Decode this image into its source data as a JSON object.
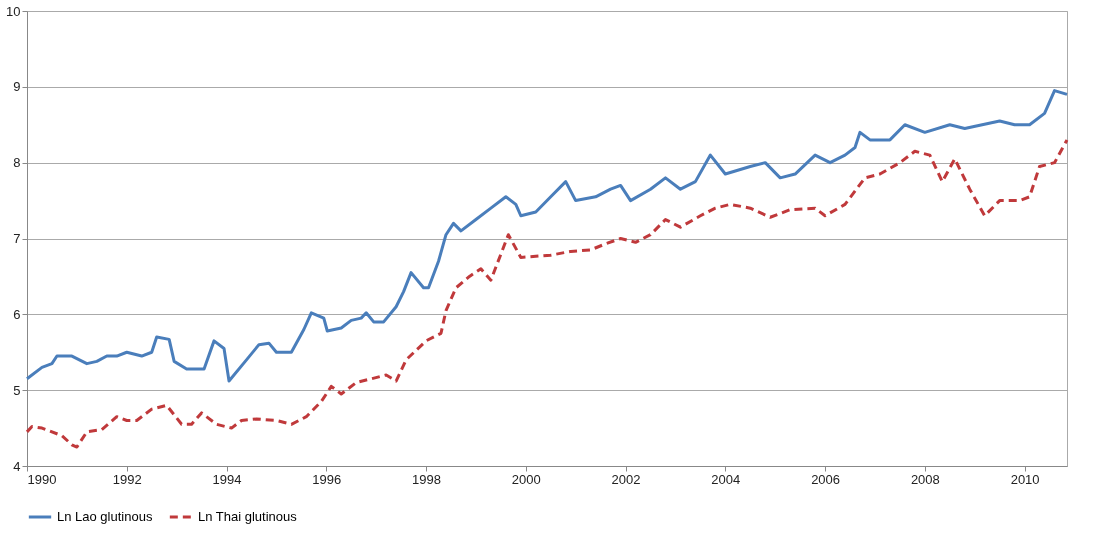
{
  "chart_data": {
    "type": "line",
    "xlim": [
      1990,
      2010.85
    ],
    "xticks": [
      1990,
      1992,
      1994,
      1996,
      1998,
      2000,
      2002,
      2004,
      2006,
      2008,
      2010
    ],
    "ylim": [
      4,
      10
    ],
    "yticks": [
      4,
      5,
      6,
      7,
      8,
      9,
      10
    ],
    "grid": "y",
    "legend": "bottom",
    "marker": "none",
    "series": [
      {
        "name": "Ln Lao glutinous",
        "color": "#4a7ebb",
        "line_style": "solid",
        "x": [
          1990.0,
          1990.3,
          1990.5,
          1990.6,
          1990.9,
          1991.2,
          1991.4,
          1991.6,
          1991.8,
          1992.0,
          1992.3,
          1992.5,
          1992.6,
          1992.85,
          1992.95,
          1993.2,
          1993.55,
          1993.75,
          1993.95,
          1994.05,
          1994.4,
          1994.65,
          1994.85,
          1995.0,
          1995.3,
          1995.55,
          1995.7,
          1995.95,
          1996.02,
          1996.3,
          1996.5,
          1996.7,
          1996.8,
          1996.95,
          1997.15,
          1997.4,
          1997.55,
          1997.7,
          1997.95,
          1998.05,
          1998.25,
          1998.4,
          1998.55,
          1998.7,
          1999.0,
          1999.3,
          1999.6,
          1999.8,
          1999.9,
          2000.2,
          2000.5,
          2000.8,
          2001.0,
          2001.4,
          2001.7,
          2001.9,
          2002.1,
          2002.5,
          2002.8,
          2003.1,
          2003.4,
          2003.7,
          2004.0,
          2004.5,
          2004.8,
          2005.1,
          2005.4,
          2005.8,
          2006.1,
          2006.4,
          2006.6,
          2006.7,
          2006.9,
          2007.3,
          2007.6,
          2008.0,
          2008.5,
          2008.8,
          2009.5,
          2009.8,
          2010.1,
          2010.4,
          2010.6,
          2010.85
        ],
        "values": [
          5.15,
          5.3,
          5.35,
          5.45,
          5.45,
          5.35,
          5.38,
          5.45,
          5.45,
          5.5,
          5.45,
          5.5,
          5.7,
          5.67,
          5.38,
          5.28,
          5.28,
          5.65,
          5.55,
          5.12,
          5.4,
          5.6,
          5.62,
          5.5,
          5.5,
          5.8,
          6.02,
          5.95,
          5.78,
          5.82,
          5.92,
          5.95,
          6.02,
          5.9,
          5.9,
          6.1,
          6.3,
          6.55,
          6.35,
          6.35,
          6.7,
          7.05,
          7.2,
          7.1,
          7.25,
          7.4,
          7.55,
          7.45,
          7.3,
          7.35,
          7.55,
          7.75,
          7.5,
          7.55,
          7.65,
          7.7,
          7.5,
          7.65,
          7.8,
          7.65,
          7.75,
          8.1,
          7.85,
          7.95,
          8.0,
          7.8,
          7.85,
          8.1,
          8.0,
          8.1,
          8.2,
          8.4,
          8.3,
          8.3,
          8.5,
          8.4,
          8.5,
          8.45,
          8.55,
          8.5,
          8.5,
          8.65,
          8.95,
          8.9
        ]
      },
      {
        "name": "Ln Thai glutinous",
        "color": "#c0393b",
        "line_style": "dashed",
        "x": [
          1990.0,
          1990.1,
          1990.3,
          1990.7,
          1990.9,
          1991.0,
          1991.2,
          1991.5,
          1991.8,
          1992.0,
          1992.2,
          1992.5,
          1992.8,
          1993.1,
          1993.3,
          1993.5,
          1993.8,
          1994.1,
          1994.3,
          1994.6,
          1995.0,
          1995.3,
          1995.6,
          1995.9,
          1996.1,
          1996.3,
          1996.6,
          1996.9,
          1997.2,
          1997.4,
          1997.6,
          1998.0,
          1998.3,
          1998.4,
          1998.6,
          1998.87,
          1999.1,
          1999.3,
          1999.65,
          1999.9,
          2000.5,
          2000.9,
          2001.3,
          2001.6,
          2001.9,
          2002.2,
          2002.5,
          2002.8,
          2003.1,
          2003.5,
          2003.8,
          2004.1,
          2004.5,
          2004.9,
          2005.3,
          2005.8,
          2006.0,
          2006.4,
          2006.8,
          2007.1,
          2007.5,
          2007.8,
          2008.1,
          2008.35,
          2008.6,
          2008.9,
          2009.2,
          2009.5,
          2009.9,
          2010.1,
          2010.3,
          2010.6,
          2010.85
        ],
        "values": [
          4.45,
          4.52,
          4.5,
          4.4,
          4.28,
          4.25,
          4.45,
          4.48,
          4.65,
          4.6,
          4.6,
          4.75,
          4.8,
          4.55,
          4.55,
          4.7,
          4.55,
          4.5,
          4.6,
          4.62,
          4.6,
          4.55,
          4.65,
          4.85,
          5.05,
          4.95,
          5.1,
          5.15,
          5.2,
          5.12,
          5.4,
          5.65,
          5.75,
          6.05,
          6.35,
          6.5,
          6.6,
          6.45,
          7.05,
          6.75,
          6.78,
          6.83,
          6.85,
          6.93,
          7.0,
          6.95,
          7.05,
          7.25,
          7.15,
          7.3,
          7.4,
          7.45,
          7.4,
          7.28,
          7.38,
          7.4,
          7.3,
          7.45,
          7.8,
          7.85,
          8.0,
          8.15,
          8.1,
          7.75,
          8.05,
          7.65,
          7.3,
          7.5,
          7.5,
          7.55,
          7.95,
          8.0,
          8.3
        ]
      }
    ]
  }
}
